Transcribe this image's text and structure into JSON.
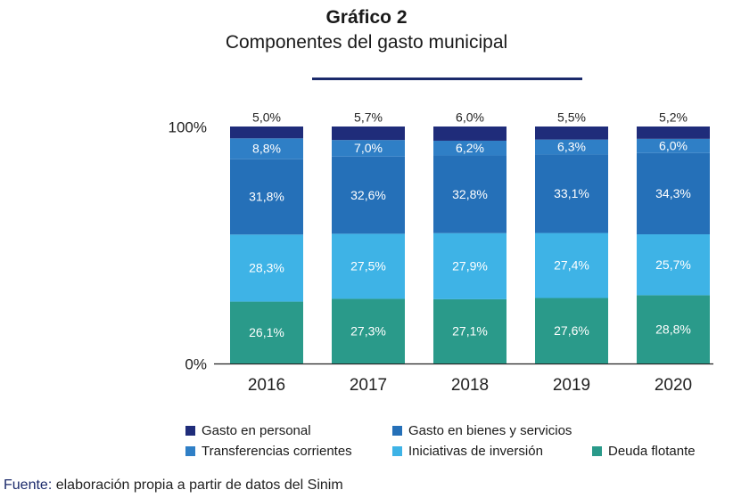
{
  "title": "Gráfico 2",
  "subtitle": "Componentes del gasto municipal",
  "source_label": "Fuente:",
  "source_text": " elaboración propia a partir de datos del Sinim",
  "colors": {
    "personal": "#1f2c7a",
    "bienes": "#2570b8",
    "transferencias": "#2f7fc6",
    "inversion": "#3eb3e6",
    "deuda": "#2a9a8a"
  },
  "chart_data": {
    "type": "bar",
    "stacked": true,
    "categories": [
      "2016",
      "2017",
      "2018",
      "2019",
      "2020"
    ],
    "ylim": [
      0,
      100
    ],
    "yticks": [
      "0%",
      "100%"
    ],
    "series": [
      {
        "name": "Deuda flotante",
        "color_key": "deuda",
        "values": [
          26.1,
          27.3,
          27.1,
          27.6,
          28.8
        ],
        "labels": [
          "26,1%",
          "27,3%",
          "27,1%",
          "27,6%",
          "28,8%"
        ]
      },
      {
        "name": "Iniciativas de inversión",
        "color_key": "inversion",
        "values": [
          28.3,
          27.5,
          27.9,
          27.4,
          25.7
        ],
        "labels": [
          "28,3%",
          "27,5%",
          "27,9%",
          "27,4%",
          "25,7%"
        ]
      },
      {
        "name": "Gasto en bienes y servicios",
        "color_key": "bienes",
        "values": [
          31.8,
          32.6,
          32.8,
          33.1,
          34.3
        ],
        "labels": [
          "31,8%",
          "32,6%",
          "32,8%",
          "33,1%",
          "34,3%"
        ]
      },
      {
        "name": "Transferencias corrientes",
        "color_key": "transferencias",
        "values": [
          8.8,
          7.0,
          6.2,
          6.3,
          6.0
        ],
        "labels": [
          "8,8%",
          "7,0%",
          "6,2%",
          "6,3%",
          "6,0%"
        ]
      },
      {
        "name": "Gasto en personal",
        "color_key": "personal",
        "values": [
          5.0,
          5.7,
          6.0,
          5.5,
          5.2
        ],
        "labels": [
          "5,0%",
          "5,7%",
          "6,0%",
          "5,5%",
          "5,2%"
        ]
      }
    ],
    "legend": [
      {
        "name": "Gasto en personal",
        "color_key": "personal"
      },
      {
        "name": "Gasto en bienes y servicios",
        "color_key": "bienes"
      },
      {
        "name": "Transferencias corrientes",
        "color_key": "transferencias"
      },
      {
        "name": "Iniciativas de inversión",
        "color_key": "inversion"
      },
      {
        "name": "Deuda flotante",
        "color_key": "deuda"
      }
    ],
    "legend_position": "bottom"
  }
}
